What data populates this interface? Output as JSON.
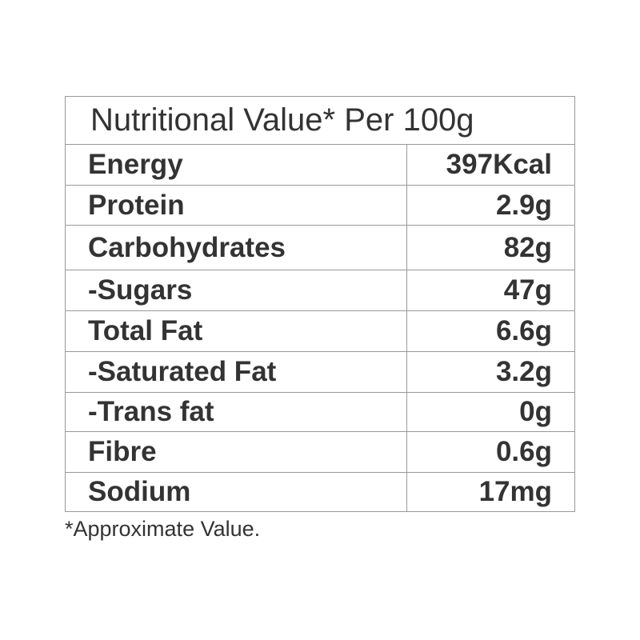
{
  "title": "Nutritional Value* Per 100g",
  "rows": [
    {
      "label": "Energy",
      "value": "397Kcal"
    },
    {
      "label": "Protein",
      "value": "2.9g"
    },
    {
      "label": "Carbohydrates",
      "value": "82g"
    },
    {
      "label": "-Sugars",
      "value": "47g"
    },
    {
      "label": "Total Fat",
      "value": "6.6g"
    },
    {
      "label": "-Saturated Fat",
      "value": "3.2g"
    },
    {
      "label": "-Trans fat",
      "value": "0g"
    },
    {
      "label": "Fibre",
      "value": "0.6g"
    },
    {
      "label": "Sodium",
      "value": "17mg"
    }
  ],
  "footnote": "*Approximate Value."
}
